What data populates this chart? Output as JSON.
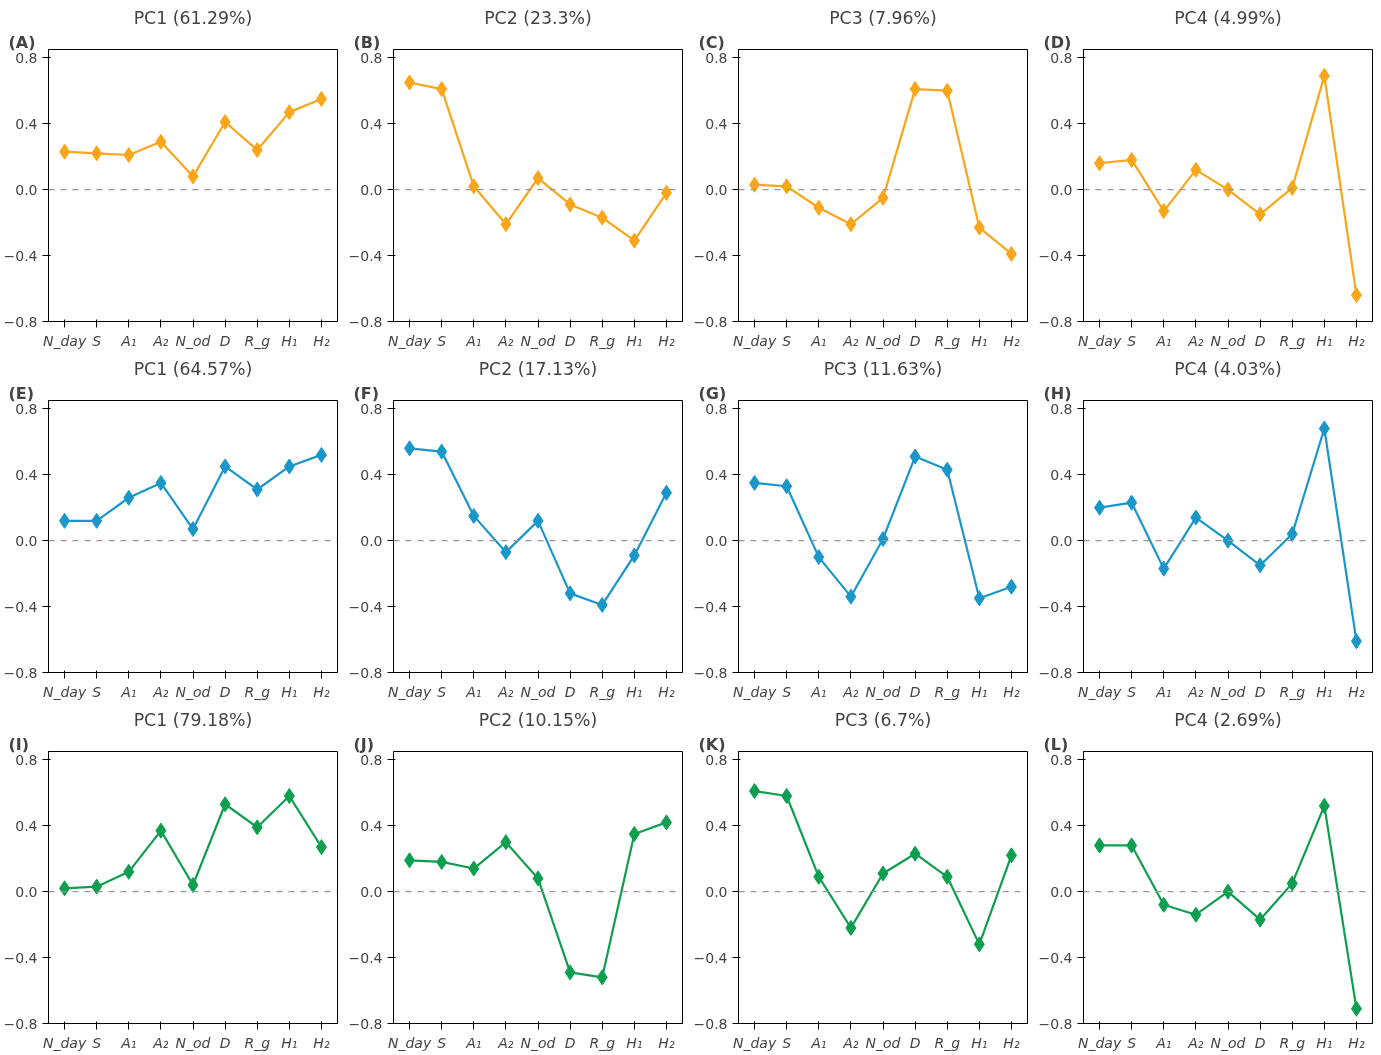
{
  "chart_data": [
    {
      "type": "line",
      "title": "PC1 (61.29%)",
      "annotations": [
        "(A)"
      ],
      "categories": [
        "N_day",
        "S",
        "A₁",
        "A₂",
        "N_od",
        "D",
        "R_g",
        "H₁",
        "H₂"
      ],
      "values": [
        0.23,
        0.22,
        0.21,
        0.29,
        0.08,
        0.41,
        0.24,
        0.47,
        0.55
      ],
      "color": "#f9a61a",
      "ylim": [
        -0.8,
        0.85
      ],
      "yticks": [
        {
          "value": -0.8,
          "label": "−0.8"
        },
        {
          "value": -0.4,
          "label": "−0.4"
        },
        {
          "value": 0,
          "label": "0.0"
        },
        {
          "value": 0.4,
          "label": "0.4"
        },
        {
          "value": 0.8,
          "label": "0.8"
        }
      ],
      "marker": "diamond",
      "grid": false,
      "tick_labels": "y",
      "ref_lines": [
        {
          "axis": "y",
          "value": 0,
          "color": "#999999",
          "line_style": "dashed"
        }
      ]
    },
    {
      "type": "line",
      "title": "PC2 (23.3%)",
      "annotations": [
        "(B)"
      ],
      "categories": [
        "N_day",
        "S",
        "A₁",
        "A₂",
        "N_od",
        "D",
        "R_g",
        "H₁",
        "H₂"
      ],
      "values": [
        0.65,
        0.61,
        0.02,
        -0.21,
        0.07,
        -0.09,
        -0.17,
        -0.31,
        -0.02
      ],
      "color": "#f9a61a",
      "ylim": [
        -0.8,
        0.85
      ],
      "yticks": [
        {
          "value": -0.8,
          "label": "−0.8"
        },
        {
          "value": -0.4,
          "label": "−0.4"
        },
        {
          "value": 0,
          "label": "0.0"
        },
        {
          "value": 0.4,
          "label": "0.4"
        },
        {
          "value": 0.8,
          "label": "0.8"
        }
      ],
      "marker": "diamond",
      "grid": false,
      "tick_labels": "y",
      "ref_lines": [
        {
          "axis": "y",
          "value": 0,
          "color": "#999999",
          "line_style": "dashed"
        }
      ]
    },
    {
      "type": "line",
      "title": "PC3 (7.96%)",
      "annotations": [
        "(C)"
      ],
      "categories": [
        "N_day",
        "S",
        "A₁",
        "A₂",
        "N_od",
        "D",
        "R_g",
        "H₁",
        "H₂"
      ],
      "values": [
        0.03,
        0.02,
        -0.11,
        -0.21,
        -0.05,
        0.61,
        0.6,
        -0.23,
        -0.39
      ],
      "color": "#f9a61a",
      "ylim": [
        -0.8,
        0.85
      ],
      "yticks": [
        {
          "value": -0.8,
          "label": "−0.8"
        },
        {
          "value": -0.4,
          "label": "−0.4"
        },
        {
          "value": 0,
          "label": "0.0"
        },
        {
          "value": 0.4,
          "label": "0.4"
        },
        {
          "value": 0.8,
          "label": "0.8"
        }
      ],
      "marker": "diamond",
      "grid": false,
      "tick_labels": "y",
      "ref_lines": [
        {
          "axis": "y",
          "value": 0,
          "color": "#999999",
          "line_style": "dashed"
        }
      ]
    },
    {
      "type": "line",
      "title": "PC4 (4.99%)",
      "annotations": [
        "(D)"
      ],
      "categories": [
        "N_day",
        "S",
        "A₁",
        "A₂",
        "N_od",
        "D",
        "R_g",
        "H₁",
        "H₂"
      ],
      "values": [
        0.16,
        0.18,
        -0.13,
        0.12,
        0.0,
        -0.15,
        0.01,
        0.69,
        -0.64
      ],
      "color": "#f9a61a",
      "ylim": [
        -0.8,
        0.85
      ],
      "yticks": [
        {
          "value": -0.8,
          "label": "−0.8"
        },
        {
          "value": -0.4,
          "label": "−0.4"
        },
        {
          "value": 0,
          "label": "0.0"
        },
        {
          "value": 0.4,
          "label": "0.4"
        },
        {
          "value": 0.8,
          "label": "0.8"
        }
      ],
      "marker": "diamond",
      "grid": false,
      "tick_labels": "y",
      "ref_lines": [
        {
          "axis": "y",
          "value": 0,
          "color": "#999999",
          "line_style": "dashed"
        }
      ]
    },
    {
      "type": "line",
      "title": "PC1 (64.57%)",
      "annotations": [
        "(E)"
      ],
      "categories": [
        "N_day",
        "S",
        "A₁",
        "A₂",
        "N_od",
        "D",
        "R_g",
        "H₁",
        "H₂"
      ],
      "values": [
        0.12,
        0.12,
        0.26,
        0.35,
        0.07,
        0.45,
        0.31,
        0.45,
        0.52
      ],
      "color": "#1a96c8",
      "ylim": [
        -0.8,
        0.85
      ],
      "yticks": [
        {
          "value": -0.8,
          "label": "−0.8"
        },
        {
          "value": -0.4,
          "label": "−0.4"
        },
        {
          "value": 0,
          "label": "0.0"
        },
        {
          "value": 0.4,
          "label": "0.4"
        },
        {
          "value": 0.8,
          "label": "0.8"
        }
      ],
      "marker": "diamond",
      "grid": false,
      "tick_labels": "y",
      "ref_lines": [
        {
          "axis": "y",
          "value": 0,
          "color": "#999999",
          "line_style": "dashed"
        }
      ]
    },
    {
      "type": "line",
      "title": "PC2 (17.13%)",
      "annotations": [
        "(F)"
      ],
      "categories": [
        "N_day",
        "S",
        "A₁",
        "A₂",
        "N_od",
        "D",
        "R_g",
        "H₁",
        "H₂"
      ],
      "values": [
        0.56,
        0.54,
        0.15,
        -0.07,
        0.12,
        -0.32,
        -0.39,
        -0.09,
        0.29
      ],
      "color": "#1a96c8",
      "ylim": [
        -0.8,
        0.85
      ],
      "yticks": [
        {
          "value": -0.8,
          "label": "−0.8"
        },
        {
          "value": -0.4,
          "label": "−0.4"
        },
        {
          "value": 0,
          "label": "0.0"
        },
        {
          "value": 0.4,
          "label": "0.4"
        },
        {
          "value": 0.8,
          "label": "0.8"
        }
      ],
      "marker": "diamond",
      "grid": false,
      "tick_labels": "y",
      "ref_lines": [
        {
          "axis": "y",
          "value": 0,
          "color": "#999999",
          "line_style": "dashed"
        }
      ]
    },
    {
      "type": "line",
      "title": "PC3 (11.63%)",
      "annotations": [
        "(G)"
      ],
      "categories": [
        "N_day",
        "S",
        "A₁",
        "A₂",
        "N_od",
        "D",
        "R_g",
        "H₁",
        "H₂"
      ],
      "values": [
        0.35,
        0.33,
        -0.1,
        -0.34,
        0.01,
        0.51,
        0.43,
        -0.35,
        -0.28
      ],
      "color": "#1a96c8",
      "ylim": [
        -0.8,
        0.85
      ],
      "yticks": [
        {
          "value": -0.8,
          "label": "−0.8"
        },
        {
          "value": -0.4,
          "label": "−0.4"
        },
        {
          "value": 0,
          "label": "0.0"
        },
        {
          "value": 0.4,
          "label": "0.4"
        },
        {
          "value": 0.8,
          "label": "0.8"
        }
      ],
      "marker": "diamond",
      "grid": false,
      "tick_labels": "y",
      "ref_lines": [
        {
          "axis": "y",
          "value": 0,
          "color": "#999999",
          "line_style": "dashed"
        }
      ]
    },
    {
      "type": "line",
      "title": "PC4 (4.03%)",
      "annotations": [
        "(H)"
      ],
      "categories": [
        "N_day",
        "S",
        "A₁",
        "A₂",
        "N_od",
        "D",
        "R_g",
        "H₁",
        "H₂"
      ],
      "values": [
        0.2,
        0.23,
        -0.17,
        0.14,
        0.0,
        -0.15,
        0.04,
        0.68,
        -0.61
      ],
      "color": "#1a96c8",
      "ylim": [
        -0.8,
        0.85
      ],
      "yticks": [
        {
          "value": -0.8,
          "label": "−0.8"
        },
        {
          "value": -0.4,
          "label": "−0.4"
        },
        {
          "value": 0,
          "label": "0.0"
        },
        {
          "value": 0.4,
          "label": "0.4"
        },
        {
          "value": 0.8,
          "label": "0.8"
        }
      ],
      "marker": "diamond",
      "grid": false,
      "tick_labels": "y",
      "ref_lines": [
        {
          "axis": "y",
          "value": 0,
          "color": "#999999",
          "line_style": "dashed"
        }
      ]
    },
    {
      "type": "line",
      "title": "PC1 (79.18%)",
      "annotations": [
        "(I)"
      ],
      "categories": [
        "N_day",
        "S",
        "A₁",
        "A₂",
        "N_od",
        "D",
        "R_g",
        "H₁",
        "H₂"
      ],
      "values": [
        0.02,
        0.03,
        0.12,
        0.37,
        0.04,
        0.53,
        0.39,
        0.58,
        0.27
      ],
      "color": "#0e9e50",
      "ylim": [
        -0.8,
        0.85
      ],
      "yticks": [
        {
          "value": -0.8,
          "label": "−0.8"
        },
        {
          "value": -0.4,
          "label": "−0.4"
        },
        {
          "value": 0,
          "label": "0.0"
        },
        {
          "value": 0.4,
          "label": "0.4"
        },
        {
          "value": 0.8,
          "label": "0.8"
        }
      ],
      "marker": "diamond",
      "grid": false,
      "tick_labels": "y",
      "ref_lines": [
        {
          "axis": "y",
          "value": 0,
          "color": "#999999",
          "line_style": "dashed"
        }
      ]
    },
    {
      "type": "line",
      "title": "PC2 (10.15%)",
      "annotations": [
        "(J)"
      ],
      "categories": [
        "N_day",
        "S",
        "A₁",
        "A₂",
        "N_od",
        "D",
        "R_g",
        "H₁",
        "H₂"
      ],
      "values": [
        0.19,
        0.18,
        0.14,
        0.3,
        0.08,
        -0.49,
        -0.52,
        0.35,
        0.42
      ],
      "color": "#0e9e50",
      "ylim": [
        -0.8,
        0.85
      ],
      "yticks": [
        {
          "value": -0.8,
          "label": "−0.8"
        },
        {
          "value": -0.4,
          "label": "−0.4"
        },
        {
          "value": 0,
          "label": "0.0"
        },
        {
          "value": 0.4,
          "label": "0.4"
        },
        {
          "value": 0.8,
          "label": "0.8"
        }
      ],
      "marker": "diamond",
      "grid": false,
      "tick_labels": "y",
      "ref_lines": [
        {
          "axis": "y",
          "value": 0,
          "color": "#999999",
          "line_style": "dashed"
        }
      ]
    },
    {
      "type": "line",
      "title": "PC3 (6.7%)",
      "annotations": [
        "(K)"
      ],
      "categories": [
        "N_day",
        "S",
        "A₁",
        "A₂",
        "N_od",
        "D",
        "R_g",
        "H₁",
        "H₂"
      ],
      "values": [
        0.61,
        0.58,
        0.09,
        -0.22,
        0.11,
        0.23,
        0.09,
        -0.32,
        0.22
      ],
      "color": "#0e9e50",
      "ylim": [
        -0.8,
        0.85
      ],
      "yticks": [
        {
          "value": -0.8,
          "label": "−0.8"
        },
        {
          "value": -0.4,
          "label": "−0.4"
        },
        {
          "value": 0,
          "label": "0.0"
        },
        {
          "value": 0.4,
          "label": "0.4"
        },
        {
          "value": 0.8,
          "label": "0.8"
        }
      ],
      "marker": "diamond",
      "grid": false,
      "tick_labels": "y",
      "ref_lines": [
        {
          "axis": "y",
          "value": 0,
          "color": "#999999",
          "line_style": "dashed"
        }
      ]
    },
    {
      "type": "line",
      "title": "PC4 (2.69%)",
      "annotations": [
        "(L)"
      ],
      "categories": [
        "N_day",
        "S",
        "A₁",
        "A₂",
        "N_od",
        "D",
        "R_g",
        "H₁",
        "H₂"
      ],
      "values": [
        0.28,
        0.28,
        -0.08,
        -0.14,
        0.0,
        -0.17,
        0.05,
        0.52,
        -0.71
      ],
      "color": "#0e9e50",
      "ylim": [
        -0.8,
        0.85
      ],
      "yticks": [
        {
          "value": -0.8,
          "label": "−0.8"
        },
        {
          "value": -0.4,
          "label": "−0.4"
        },
        {
          "value": 0,
          "label": "0.0"
        },
        {
          "value": 0.4,
          "label": "0.4"
        },
        {
          "value": 0.8,
          "label": "0.8"
        }
      ],
      "marker": "diamond",
      "grid": false,
      "tick_labels": "y",
      "ref_lines": [
        {
          "axis": "y",
          "value": 0,
          "color": "#999999",
          "line_style": "dashed"
        }
      ]
    }
  ]
}
